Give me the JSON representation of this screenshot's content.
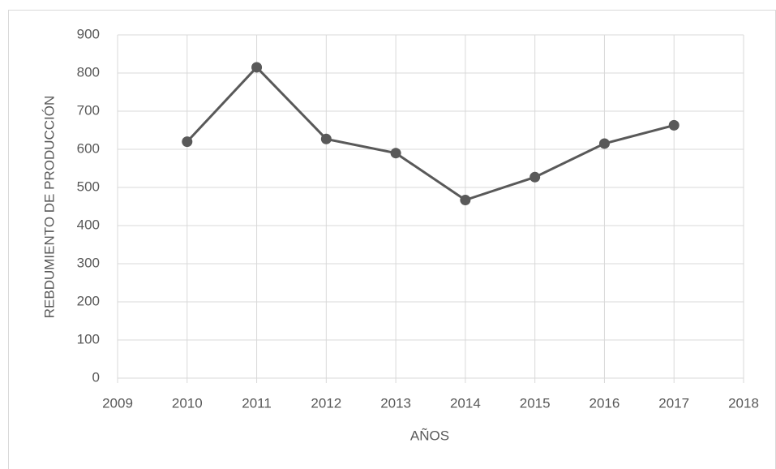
{
  "chart_data": {
    "type": "line",
    "x": [
      2010,
      2011,
      2012,
      2013,
      2014,
      2015,
      2016,
      2017
    ],
    "values": [
      620,
      815,
      627,
      590,
      467,
      527,
      615,
      663
    ],
    "color": "#595959",
    "xlabel": "AÑOS",
    "ylabel": "REBDUMIENTO DE PRODUCCIÓN",
    "xlim": [
      2009,
      2018
    ],
    "xticks": [
      2009,
      2010,
      2011,
      2012,
      2013,
      2014,
      2015,
      2016,
      2017,
      2018
    ],
    "ylim": [
      0,
      900
    ],
    "yticks": [
      0,
      100,
      200,
      300,
      400,
      500,
      600,
      700,
      800,
      900
    ],
    "grid": true
  }
}
